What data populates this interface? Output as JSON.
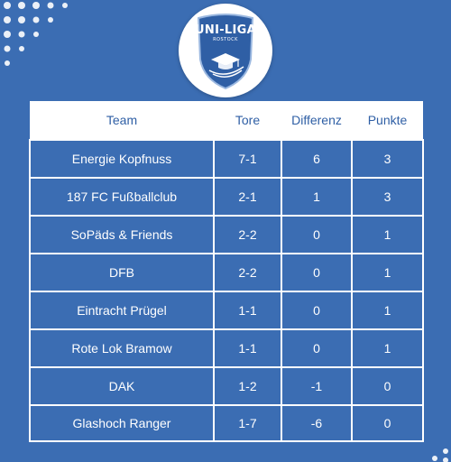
{
  "logo": {
    "title": "UNI-LIGA",
    "subtitle": "ROSTOCK"
  },
  "table": {
    "headers": [
      "Team",
      "Tore",
      "Differenz",
      "Punkte"
    ],
    "rows": [
      {
        "team": "Energie Kopfnuss",
        "tore": "7-1",
        "differenz": "6",
        "punkte": "3"
      },
      {
        "team": "187 FC Fußballclub",
        "tore": "2-1",
        "differenz": "1",
        "punkte": "3"
      },
      {
        "team": "SoPäds & Friends",
        "tore": "2-2",
        "differenz": "0",
        "punkte": "1"
      },
      {
        "team": "DFB",
        "tore": "2-2",
        "differenz": "0",
        "punkte": "1"
      },
      {
        "team": "Eintracht Prügel",
        "tore": "1-1",
        "differenz": "0",
        "punkte": "1"
      },
      {
        "team": "Rote Lok Bramow",
        "tore": "1-1",
        "differenz": "0",
        "punkte": "1"
      },
      {
        "team": "DAK",
        "tore": "1-2",
        "differenz": "-1",
        "punkte": "0"
      },
      {
        "team": "Glashoch Ranger",
        "tore": "1-7",
        "differenz": "-6",
        "punkte": "0"
      }
    ]
  },
  "colors": {
    "background": "#3b6db3",
    "header_text": "#2f5fa5",
    "cell_text": "#ffffff",
    "grid": "#ffffff"
  }
}
